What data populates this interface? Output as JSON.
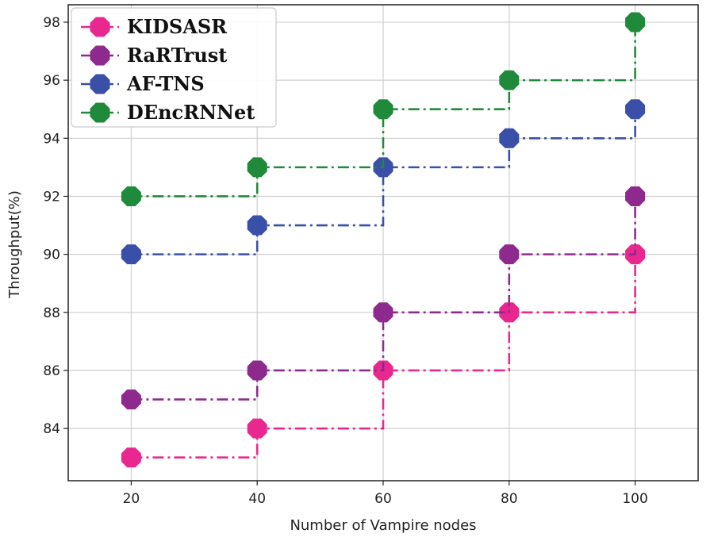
{
  "chart_data": {
    "type": "line",
    "step": "post",
    "xlabel": "Number of Vampire nodes",
    "ylabel": "Throughput(%)",
    "x": [
      20,
      40,
      60,
      80,
      100
    ],
    "xlim": [
      10,
      110
    ],
    "ylim": [
      82.2,
      98.6
    ],
    "xticks": [
      20,
      40,
      60,
      80,
      100
    ],
    "yticks": [
      84,
      86,
      88,
      90,
      92,
      94,
      96,
      98
    ],
    "grid": true,
    "legend_position": "top-left",
    "series": [
      {
        "name": "KIDSASR",
        "values": [
          83,
          84,
          86,
          88,
          90
        ],
        "color": "#e8288f"
      },
      {
        "name": "RaRTrust",
        "values": [
          85,
          86,
          88,
          90,
          92
        ],
        "color": "#8e2a8e"
      },
      {
        "name": "AF-TNS",
        "values": [
          90,
          91,
          93,
          94,
          95
        ],
        "color": "#3a4fa8"
      },
      {
        "name": "DEncRNNet",
        "values": [
          92,
          93,
          95,
          96,
          98
        ],
        "color": "#1f8a3a"
      }
    ]
  }
}
